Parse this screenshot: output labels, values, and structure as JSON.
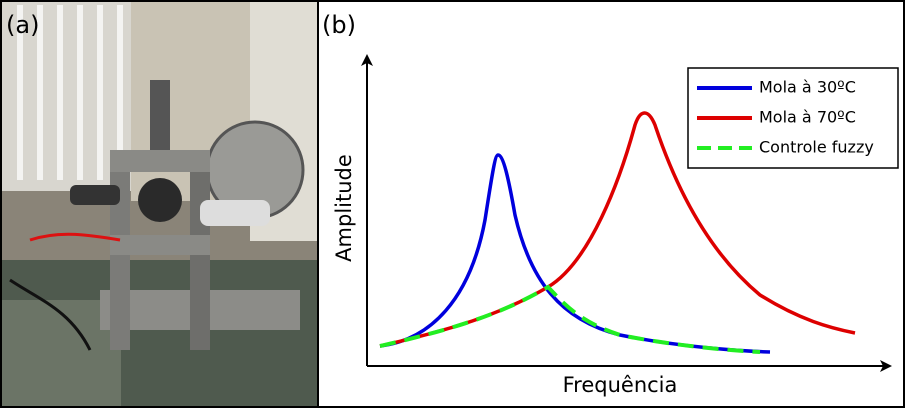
{
  "panel_a": {
    "label": "(a)"
  },
  "panel_b": {
    "label": "(b)",
    "y_axis_label": "Amplitude",
    "x_axis_label": "Frequência",
    "legend": [
      {
        "name": "Mola à 30ºC",
        "color": "#0000dd",
        "dash": false
      },
      {
        "name": "Mola à 70ºC",
        "color": "#dd0000",
        "dash": false
      },
      {
        "name": "Controle fuzzy",
        "color": "#22ee22",
        "dash": true
      }
    ]
  }
}
